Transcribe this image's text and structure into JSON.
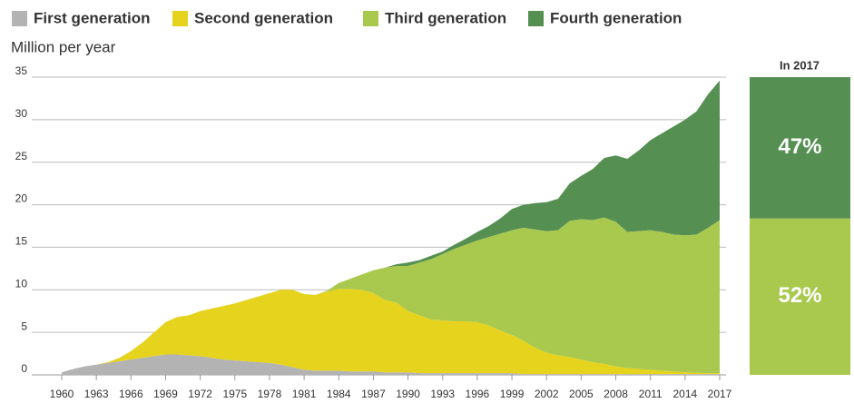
{
  "chart_data": [
    {
      "type": "area",
      "y_label": "Million per year",
      "x": [
        1960,
        1961,
        1962,
        1963,
        1964,
        1965,
        1966,
        1967,
        1968,
        1969,
        1970,
        1971,
        1972,
        1973,
        1974,
        1975,
        1976,
        1977,
        1978,
        1979,
        1980,
        1981,
        1982,
        1983,
        1984,
        1985,
        1986,
        1987,
        1988,
        1989,
        1990,
        1991,
        1992,
        1993,
        1994,
        1995,
        1996,
        1997,
        1998,
        1999,
        2000,
        2001,
        2002,
        2003,
        2004,
        2005,
        2006,
        2007,
        2008,
        2009,
        2010,
        2011,
        2012,
        2013,
        2014,
        2015,
        2016,
        2017
      ],
      "series": [
        {
          "name": "First generation",
          "color": "#b3b3b3",
          "values": [
            0.3,
            0.7,
            1.0,
            1.2,
            1.4,
            1.6,
            1.8,
            2.0,
            2.2,
            2.4,
            2.4,
            2.3,
            2.2,
            2.0,
            1.8,
            1.7,
            1.6,
            1.5,
            1.4,
            1.2,
            0.9,
            0.6,
            0.5,
            0.5,
            0.5,
            0.4,
            0.4,
            0.4,
            0.3,
            0.3,
            0.3,
            0.2,
            0.2,
            0.2,
            0.2,
            0.2,
            0.2,
            0.2,
            0.2,
            0.2,
            0.1,
            0.1,
            0.1,
            0.1,
            0.1,
            0.1,
            0.1,
            0.1,
            0.1,
            0.1,
            0.1,
            0.1,
            0.1,
            0.1,
            0.1,
            0.1,
            0.1,
            0.1
          ]
        },
        {
          "name": "Second generation",
          "color": "#e6d31e",
          "values": [
            0,
            0,
            0,
            0,
            0.1,
            0.4,
            1.0,
            1.8,
            2.8,
            3.8,
            4.4,
            4.7,
            5.3,
            5.8,
            6.3,
            6.7,
            7.2,
            7.7,
            8.2,
            8.8,
            9.1,
            8.9,
            8.9,
            9.3,
            9.6,
            9.7,
            9.6,
            9.2,
            8.5,
            8.2,
            7.2,
            6.8,
            6.3,
            6.2,
            6.1,
            6.1,
            6.0,
            5.6,
            5.0,
            4.5,
            3.9,
            3.1,
            2.5,
            2.2,
            2.0,
            1.7,
            1.4,
            1.2,
            0.9,
            0.7,
            0.6,
            0.5,
            0.4,
            0.3,
            0.2,
            0.15,
            0.1,
            0.1
          ]
        },
        {
          "name": "Third generation",
          "color": "#a8c94e",
          "values": [
            0,
            0,
            0,
            0,
            0,
            0,
            0,
            0,
            0,
            0,
            0,
            0,
            0,
            0,
            0,
            0,
            0,
            0,
            0,
            0,
            0,
            0,
            0,
            0.1,
            0.7,
            1.2,
            1.8,
            2.7,
            3.8,
            4.3,
            5.3,
            6.2,
            7.1,
            7.8,
            8.5,
            9.0,
            9.6,
            10.4,
            11.4,
            12.3,
            13.3,
            13.9,
            14.3,
            14.7,
            16.0,
            16.5,
            16.7,
            17.2,
            17.0,
            16.0,
            16.2,
            16.4,
            16.3,
            16.1,
            16.1,
            16.25,
            17.1,
            18.0
          ]
        },
        {
          "name": "Fourth generation",
          "color": "#568f52",
          "values": [
            0,
            0,
            0,
            0,
            0,
            0,
            0,
            0,
            0,
            0,
            0,
            0,
            0,
            0,
            0,
            0,
            0,
            0,
            0,
            0,
            0,
            0,
            0,
            0,
            0,
            0,
            0,
            0,
            0,
            0.2,
            0.4,
            0.3,
            0.4,
            0.3,
            0.5,
            0.7,
            1.0,
            1.3,
            1.8,
            2.5,
            2.7,
            3.1,
            3.4,
            3.7,
            4.4,
            5.1,
            6.0,
            7.0,
            7.8,
            8.6,
            9.5,
            10.6,
            11.6,
            12.7,
            13.6,
            14.5,
            15.7,
            16.4
          ]
        }
      ],
      "xlim": [
        1960,
        2017
      ],
      "xticks": [
        1960,
        1963,
        1966,
        1969,
        1972,
        1975,
        1978,
        1981,
        1984,
        1987,
        1990,
        1993,
        1996,
        1999,
        2002,
        2005,
        2008,
        2011,
        2014,
        2017
      ],
      "ylim": [
        0,
        35
      ],
      "yticks": [
        0,
        5,
        10,
        15,
        20,
        25,
        30,
        35
      ],
      "grid": true
    },
    {
      "type": "stacked-bar",
      "title": "In 2017",
      "values": [
        52,
        47
      ],
      "value_labels": [
        "52%",
        "47%"
      ],
      "colors": [
        "#a8c94e",
        "#568f52"
      ]
    }
  ]
}
